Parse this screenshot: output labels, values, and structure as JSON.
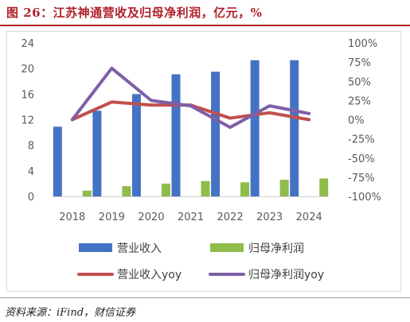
{
  "header": {
    "title": "图 26：江苏神通营收及归母净利润，亿元，%"
  },
  "source": "资料来源：iFind，财信证券",
  "chart_data": {
    "type": "bar",
    "categories": [
      "2018",
      "2019",
      "2020",
      "2021",
      "2022",
      "2023",
      "2024"
    ],
    "series": [
      {
        "name": "营业收入",
        "type": "bar",
        "axis": "left",
        "color": "#4472c4",
        "values": [
          10.9,
          13.4,
          16.0,
          19.1,
          19.5,
          21.3,
          21.3
        ]
      },
      {
        "name": "归母净利润",
        "type": "bar",
        "axis": "left",
        "color": "#8fbc4a",
        "values": [
          0.9,
          1.6,
          2.0,
          2.4,
          2.2,
          2.6,
          2.8
        ]
      },
      {
        "name": "营业收入yoy",
        "type": "line",
        "axis": "right",
        "color": "#c0504d",
        "values": [
          0,
          23,
          19,
          19,
          2,
          9,
          0
        ]
      },
      {
        "name": "归母净利润yoy",
        "type": "line",
        "axis": "right",
        "color": "#7f5fa6",
        "values": [
          0,
          67,
          25,
          18,
          -10,
          18,
          8
        ]
      }
    ],
    "left_axis": {
      "min": 0,
      "max": 24,
      "ticks": [
        "0",
        "4",
        "8",
        "12",
        "16",
        "20",
        "24"
      ]
    },
    "right_axis": {
      "min": -100,
      "max": 100,
      "ticks": [
        "-100%",
        "-75%",
        "-50%",
        "-25%",
        "0%",
        "25%",
        "50%",
        "75%",
        "100%"
      ]
    },
    "grid": false,
    "legend_position": "bottom"
  }
}
